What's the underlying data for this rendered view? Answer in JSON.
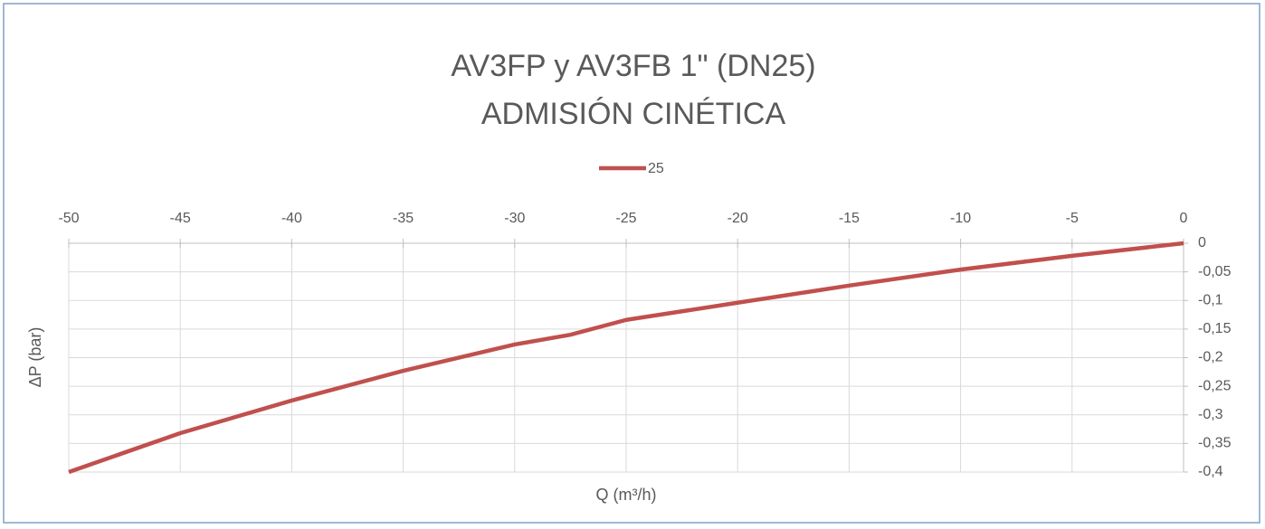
{
  "chart_data": {
    "type": "line",
    "title": [
      "AV3FP y AV3FB 1\" (DN25)",
      "ADMISIÓN CINÉTICA"
    ],
    "x_label": "Q (m³/h)",
    "y_label": "ΔP (bar)",
    "x": [
      -50,
      -45,
      -40,
      -35,
      -30,
      -27.5,
      -25,
      -20,
      -15,
      -10,
      -5,
      0
    ],
    "series": [
      {
        "name": "25",
        "color": "#c0504d",
        "values": [
          -0.4,
          -0.332,
          -0.275,
          -0.223,
          -0.177,
          -0.16,
          -0.134,
          -0.104,
          -0.074,
          -0.046,
          -0.022,
          0
        ]
      }
    ],
    "xlim": [
      -50,
      0
    ],
    "xticks": [
      -50,
      -45,
      -40,
      -35,
      -30,
      -25,
      -20,
      -15,
      -10,
      -5,
      0
    ],
    "ylim": [
      -0.4,
      0
    ],
    "yticks": [
      0,
      {
        "value": -0.05,
        "label": "-0,05"
      },
      {
        "value": -0.1,
        "label": "-0,1"
      },
      {
        "value": -0.15,
        "label": "-0,15"
      },
      {
        "value": -0.2,
        "label": "-0,2"
      },
      {
        "value": -0.25,
        "label": "-0,25"
      },
      {
        "value": -0.3,
        "label": "-0,3"
      },
      {
        "value": -0.35,
        "label": "-0,35"
      },
      {
        "value": -0.4,
        "label": "-0,4"
      }
    ],
    "grid": true,
    "legend": "top"
  }
}
